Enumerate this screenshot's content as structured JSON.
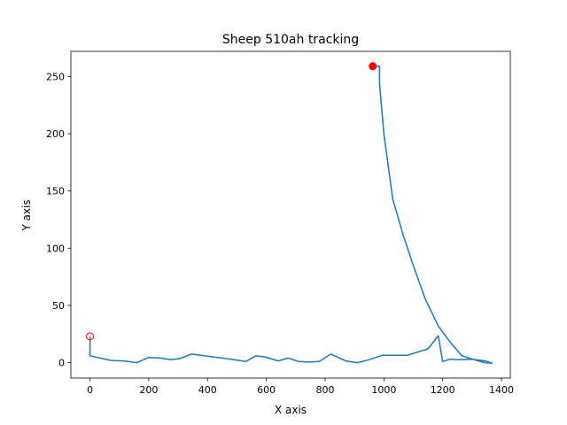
{
  "chart_data": {
    "type": "line",
    "title": "Sheep 510ah tracking",
    "xlabel": "X axis",
    "ylabel": "Y axis",
    "xlim": [
      -65,
      1430
    ],
    "ylim": [
      -13.5,
      272
    ],
    "xticks": [
      0,
      200,
      400,
      600,
      800,
      1000,
      1200,
      1400
    ],
    "yticks": [
      0,
      50,
      100,
      150,
      200,
      250
    ],
    "grid": false,
    "series": [
      {
        "color": "#1f77b4",
        "x": [
          0,
          0,
          70,
          115,
          160,
          200,
          240,
          275,
          305,
          345,
          480,
          530,
          565,
          595,
          640,
          675,
          710,
          745,
          780,
          820,
          870,
          910,
          950,
          995,
          1030,
          1080,
          1150,
          1185,
          1200,
          1225,
          1250,
          1300,
          1345,
          1368,
          1345,
          1315,
          1265,
          1225,
          1185,
          1140,
          1100,
          1065,
          1030,
          1000,
          985,
          985,
          975,
          960
        ],
        "y": [
          23,
          6,
          2,
          1.5,
          0,
          4.5,
          4,
          2.5,
          3.5,
          7.5,
          3,
          1,
          6,
          5,
          1.5,
          4,
          1,
          0.5,
          1,
          7.5,
          1.5,
          0,
          2.5,
          6.5,
          6.5,
          6.5,
          12,
          23.5,
          1,
          3,
          2.5,
          3,
          1.5,
          -0.5,
          0,
          2,
          6,
          18,
          32,
          56,
          85,
          112,
          143,
          200,
          244,
          259,
          259,
          259
        ]
      }
    ],
    "start_marker": {
      "x": 0,
      "y": 23,
      "color": "#ff0000",
      "filled": false
    },
    "end_marker": {
      "x": 962,
      "y": 259,
      "color": "#ff0000",
      "filled": true
    }
  }
}
